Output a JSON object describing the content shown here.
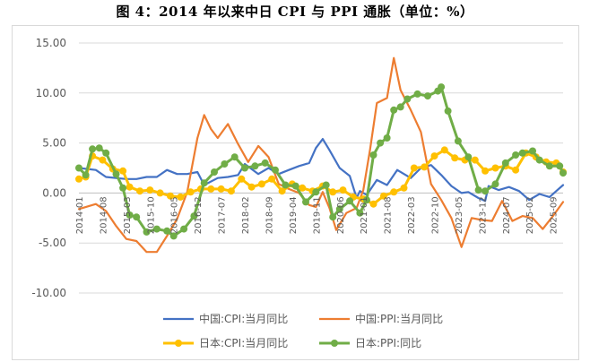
{
  "title": "图 4：2014 年以来中日 CPI 与 PPI 通胀（单位：%）",
  "chart_data": {
    "type": "line",
    "title": "图 4：2014 年以来中日 CPI 与 PPI 通胀（单位：%）",
    "xlabel": "",
    "ylabel": "",
    "ylim": [
      -10,
      15
    ],
    "y_ticks": [
      "15.00",
      "10.00",
      "5.00",
      "0.00",
      "-5.00",
      "-10.00"
    ],
    "x_ticks": [
      "2014-01",
      "2014-08",
      "2015-03",
      "2015-10",
      "2016-05",
      "2016-12",
      "2017-07",
      "2018-02",
      "2018-09",
      "2019-04",
      "2019-11",
      "2020-06",
      "2021-01",
      "2021-08",
      "2022-03",
      "2022-10",
      "2023-05",
      "2023-12",
      "2024-07",
      "2025-02",
      "2025-09"
    ],
    "grid": true,
    "legend_position": "bottom",
    "x_start": "2014-01",
    "x_end": "2025-12",
    "series": [
      {
        "name": "中国:CPI:当月同比",
        "color": "#4472c4",
        "marker": "none",
        "points": [
          [
            "2014-01",
            2.5
          ],
          [
            "2014-06",
            2.3
          ],
          [
            "2014-09",
            1.6
          ],
          [
            "2014-12",
            1.5
          ],
          [
            "2015-03",
            1.4
          ],
          [
            "2015-06",
            1.4
          ],
          [
            "2015-09",
            1.6
          ],
          [
            "2015-12",
            1.6
          ],
          [
            "2016-03",
            2.3
          ],
          [
            "2016-06",
            1.9
          ],
          [
            "2016-09",
            1.9
          ],
          [
            "2016-12",
            2.1
          ],
          [
            "2017-02",
            0.8
          ],
          [
            "2017-06",
            1.5
          ],
          [
            "2017-09",
            1.6
          ],
          [
            "2017-12",
            1.8
          ],
          [
            "2018-02",
            2.9
          ],
          [
            "2018-06",
            1.9
          ],
          [
            "2018-09",
            2.5
          ],
          [
            "2018-12",
            1.9
          ],
          [
            "2019-03",
            2.3
          ],
          [
            "2019-06",
            2.7
          ],
          [
            "2019-09",
            3.0
          ],
          [
            "2019-11",
            4.5
          ],
          [
            "2020-01",
            5.4
          ],
          [
            "2020-03",
            4.3
          ],
          [
            "2020-06",
            2.5
          ],
          [
            "2020-09",
            1.7
          ],
          [
            "2020-11",
            -0.5
          ],
          [
            "2020-12",
            0.2
          ],
          [
            "2021-02",
            -0.2
          ],
          [
            "2021-05",
            1.3
          ],
          [
            "2021-08",
            0.8
          ],
          [
            "2021-11",
            2.3
          ],
          [
            "2022-03",
            1.5
          ],
          [
            "2022-06",
            2.5
          ],
          [
            "2022-09",
            2.8
          ],
          [
            "2022-12",
            1.8
          ],
          [
            "2023-03",
            0.7
          ],
          [
            "2023-06",
            0.0
          ],
          [
            "2023-08",
            0.1
          ],
          [
            "2023-11",
            -0.5
          ],
          [
            "2024-01",
            -0.8
          ],
          [
            "2024-02",
            0.7
          ],
          [
            "2024-05",
            0.3
          ],
          [
            "2024-08",
            0.6
          ],
          [
            "2024-11",
            0.2
          ],
          [
            "2025-02",
            -0.7
          ],
          [
            "2025-05",
            -0.1
          ],
          [
            "2025-08",
            -0.4
          ],
          [
            "2025-10",
            0.2
          ],
          [
            "2025-12",
            0.8
          ]
        ]
      },
      {
        "name": "中国:PPI:当月同比",
        "color": "#ed7d31",
        "marker": "none",
        "points": [
          [
            "2014-01",
            -1.6
          ],
          [
            "2014-06",
            -1.1
          ],
          [
            "2014-09",
            -1.8
          ],
          [
            "2014-12",
            -3.3
          ],
          [
            "2015-03",
            -4.6
          ],
          [
            "2015-06",
            -4.8
          ],
          [
            "2015-09",
            -5.9
          ],
          [
            "2015-12",
            -5.9
          ],
          [
            "2016-03",
            -4.3
          ],
          [
            "2016-06",
            -2.6
          ],
          [
            "2016-09",
            0.1
          ],
          [
            "2016-12",
            5.5
          ],
          [
            "2017-02",
            7.8
          ],
          [
            "2017-04",
            6.4
          ],
          [
            "2017-06",
            5.5
          ],
          [
            "2017-09",
            6.9
          ],
          [
            "2017-12",
            4.9
          ],
          [
            "2018-03",
            3.1
          ],
          [
            "2018-06",
            4.7
          ],
          [
            "2018-09",
            3.6
          ],
          [
            "2018-12",
            0.9
          ],
          [
            "2019-03",
            0.4
          ],
          [
            "2019-06",
            0.0
          ],
          [
            "2019-09",
            -1.2
          ],
          [
            "2019-11",
            -1.4
          ],
          [
            "2020-01",
            0.1
          ],
          [
            "2020-03",
            -1.5
          ],
          [
            "2020-05",
            -3.7
          ],
          [
            "2020-08",
            -2.0
          ],
          [
            "2020-11",
            -1.5
          ],
          [
            "2021-01",
            0.3
          ],
          [
            "2021-03",
            4.4
          ],
          [
            "2021-05",
            9.0
          ],
          [
            "2021-08",
            9.5
          ],
          [
            "2021-10",
            13.5
          ],
          [
            "2021-12",
            10.3
          ],
          [
            "2022-03",
            8.3
          ],
          [
            "2022-06",
            6.1
          ],
          [
            "2022-09",
            0.9
          ],
          [
            "2022-12",
            -0.7
          ],
          [
            "2023-03",
            -2.5
          ],
          [
            "2023-06",
            -5.4
          ],
          [
            "2023-09",
            -2.5
          ],
          [
            "2023-12",
            -2.7
          ],
          [
            "2024-03",
            -2.8
          ],
          [
            "2024-06",
            -0.8
          ],
          [
            "2024-09",
            -2.8
          ],
          [
            "2024-12",
            -2.3
          ],
          [
            "2025-03",
            -2.5
          ],
          [
            "2025-06",
            -3.6
          ],
          [
            "2025-09",
            -2.3
          ],
          [
            "2025-12",
            -0.9
          ]
        ]
      },
      {
        "name": "日本:CPI:当月同比",
        "color": "#ffc000",
        "marker": "circle",
        "points": [
          [
            "2014-01",
            1.4
          ],
          [
            "2014-03",
            1.6
          ],
          [
            "2014-05",
            3.7
          ],
          [
            "2014-08",
            3.3
          ],
          [
            "2014-11",
            2.4
          ],
          [
            "2015-02",
            2.2
          ],
          [
            "2015-04",
            0.6
          ],
          [
            "2015-07",
            0.2
          ],
          [
            "2015-10",
            0.3
          ],
          [
            "2016-01",
            0.0
          ],
          [
            "2016-04",
            -0.3
          ],
          [
            "2016-07",
            -0.4
          ],
          [
            "2016-10",
            0.1
          ],
          [
            "2017-01",
            0.4
          ],
          [
            "2017-04",
            0.4
          ],
          [
            "2017-07",
            0.4
          ],
          [
            "2017-10",
            0.2
          ],
          [
            "2018-01",
            1.4
          ],
          [
            "2018-04",
            0.6
          ],
          [
            "2018-07",
            0.9
          ],
          [
            "2018-10",
            1.4
          ],
          [
            "2019-01",
            0.2
          ],
          [
            "2019-04",
            0.9
          ],
          [
            "2019-07",
            0.5
          ],
          [
            "2019-10",
            0.2
          ],
          [
            "2020-01",
            0.7
          ],
          [
            "2020-04",
            0.1
          ],
          [
            "2020-07",
            0.3
          ],
          [
            "2020-10",
            -0.4
          ],
          [
            "2021-01",
            -0.6
          ],
          [
            "2021-04",
            -1.1
          ],
          [
            "2021-07",
            -0.3
          ],
          [
            "2021-10",
            0.1
          ],
          [
            "2022-01",
            0.5
          ],
          [
            "2022-04",
            2.5
          ],
          [
            "2022-07",
            2.6
          ],
          [
            "2022-10",
            3.7
          ],
          [
            "2023-01",
            4.3
          ],
          [
            "2023-04",
            3.5
          ],
          [
            "2023-07",
            3.3
          ],
          [
            "2023-10",
            3.3
          ],
          [
            "2024-01",
            2.2
          ],
          [
            "2024-04",
            2.5
          ],
          [
            "2024-07",
            2.7
          ],
          [
            "2024-10",
            2.3
          ],
          [
            "2025-01",
            4.0
          ],
          [
            "2025-04",
            3.6
          ],
          [
            "2025-07",
            3.1
          ],
          [
            "2025-10",
            3.0
          ],
          [
            "2025-12",
            2.1
          ]
        ]
      },
      {
        "name": "日本:PPI:同比",
        "color": "#70ad47",
        "marker": "circle",
        "points": [
          [
            "2014-01",
            2.5
          ],
          [
            "2014-03",
            1.8
          ],
          [
            "2014-05",
            4.4
          ],
          [
            "2014-07",
            4.5
          ],
          [
            "2014-09",
            4.0
          ],
          [
            "2014-12",
            1.9
          ],
          [
            "2015-02",
            0.5
          ],
          [
            "2015-04",
            -2.2
          ],
          [
            "2015-06",
            -2.4
          ],
          [
            "2015-09",
            -3.9
          ],
          [
            "2015-12",
            -3.6
          ],
          [
            "2016-03",
            -3.8
          ],
          [
            "2016-05",
            -4.3
          ],
          [
            "2016-08",
            -3.6
          ],
          [
            "2016-11",
            -2.3
          ],
          [
            "2017-02",
            1.0
          ],
          [
            "2017-05",
            2.1
          ],
          [
            "2017-08",
            2.9
          ],
          [
            "2017-11",
            3.6
          ],
          [
            "2018-02",
            2.5
          ],
          [
            "2018-05",
            2.7
          ],
          [
            "2018-08",
            3.0
          ],
          [
            "2018-11",
            2.3
          ],
          [
            "2019-02",
            0.8
          ],
          [
            "2019-05",
            0.7
          ],
          [
            "2019-08",
            -0.9
          ],
          [
            "2019-11",
            0.1
          ],
          [
            "2020-02",
            0.8
          ],
          [
            "2020-04",
            -2.4
          ],
          [
            "2020-06",
            -1.6
          ],
          [
            "2020-09",
            -0.8
          ],
          [
            "2020-12",
            -2.0
          ],
          [
            "2021-02",
            -0.7
          ],
          [
            "2021-04",
            3.8
          ],
          [
            "2021-06",
            5.0
          ],
          [
            "2021-08",
            5.5
          ],
          [
            "2021-10",
            8.3
          ],
          [
            "2021-12",
            8.6
          ],
          [
            "2022-02",
            9.4
          ],
          [
            "2022-05",
            9.9
          ],
          [
            "2022-08",
            9.7
          ],
          [
            "2022-11",
            10.2
          ],
          [
            "2022-12",
            10.6
          ],
          [
            "2023-02",
            8.2
          ],
          [
            "2023-05",
            5.2
          ],
          [
            "2023-08",
            3.6
          ],
          [
            "2023-11",
            0.3
          ],
          [
            "2024-01",
            0.2
          ],
          [
            "2024-04",
            0.9
          ],
          [
            "2024-07",
            3.0
          ],
          [
            "2024-10",
            3.8
          ],
          [
            "2024-12",
            4.0
          ],
          [
            "2025-03",
            4.2
          ],
          [
            "2025-05",
            3.3
          ],
          [
            "2025-08",
            2.7
          ],
          [
            "2025-11",
            2.7
          ],
          [
            "2025-12",
            2.0
          ]
        ]
      }
    ]
  }
}
